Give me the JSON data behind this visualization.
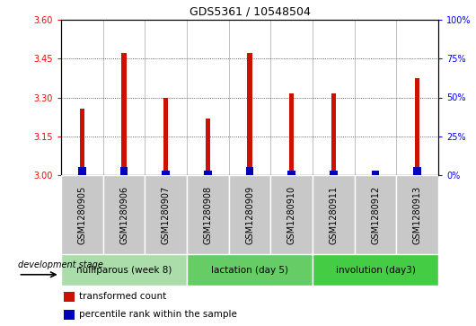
{
  "title": "GDS5361 / 10548504",
  "samples": [
    "GSM1280905",
    "GSM1280906",
    "GSM1280907",
    "GSM1280908",
    "GSM1280909",
    "GSM1280910",
    "GSM1280911",
    "GSM1280912",
    "GSM1280913"
  ],
  "transformed_counts": [
    3.255,
    3.47,
    3.3,
    3.22,
    3.47,
    3.315,
    3.315,
    3.0,
    3.375
  ],
  "percentile_ranks_pct": [
    5,
    5,
    3,
    3,
    5,
    3,
    3,
    3,
    5
  ],
  "ylim_left": [
    3.0,
    3.6
  ],
  "yticks_left": [
    3.0,
    3.15,
    3.3,
    3.45,
    3.6
  ],
  "ylim_right": [
    0,
    100
  ],
  "yticks_right": [
    0,
    25,
    50,
    75,
    100
  ],
  "bar_color_red": "#cc1100",
  "bar_color_blue": "#0000bb",
  "bar_width": 0.12,
  "blue_bar_width": 0.18,
  "groups": [
    {
      "label": "nulliparous (week 8)",
      "start": 0,
      "end": 3
    },
    {
      "label": "lactation (day 5)",
      "start": 3,
      "end": 6
    },
    {
      "label": "involution (day3)",
      "start": 6,
      "end": 9
    }
  ],
  "group_colors": [
    "#aaddaa",
    "#66cc66",
    "#44cc44"
  ],
  "group_border_color": "#ffffff",
  "development_stage_label": "development stage",
  "legend_items": [
    {
      "label": "transformed count",
      "color": "#cc1100"
    },
    {
      "label": "percentile rank within the sample",
      "color": "#0000bb"
    }
  ],
  "tick_area_bg": "#c8c8c8",
  "tick_area_border": "#999999",
  "plot_bg": "#ffffff",
  "dotted_grid_color": "#333333",
  "title_fontsize": 9,
  "tick_fontsize": 7,
  "group_fontsize": 7.5,
  "legend_fontsize": 7.5,
  "dev_stage_fontsize": 7
}
